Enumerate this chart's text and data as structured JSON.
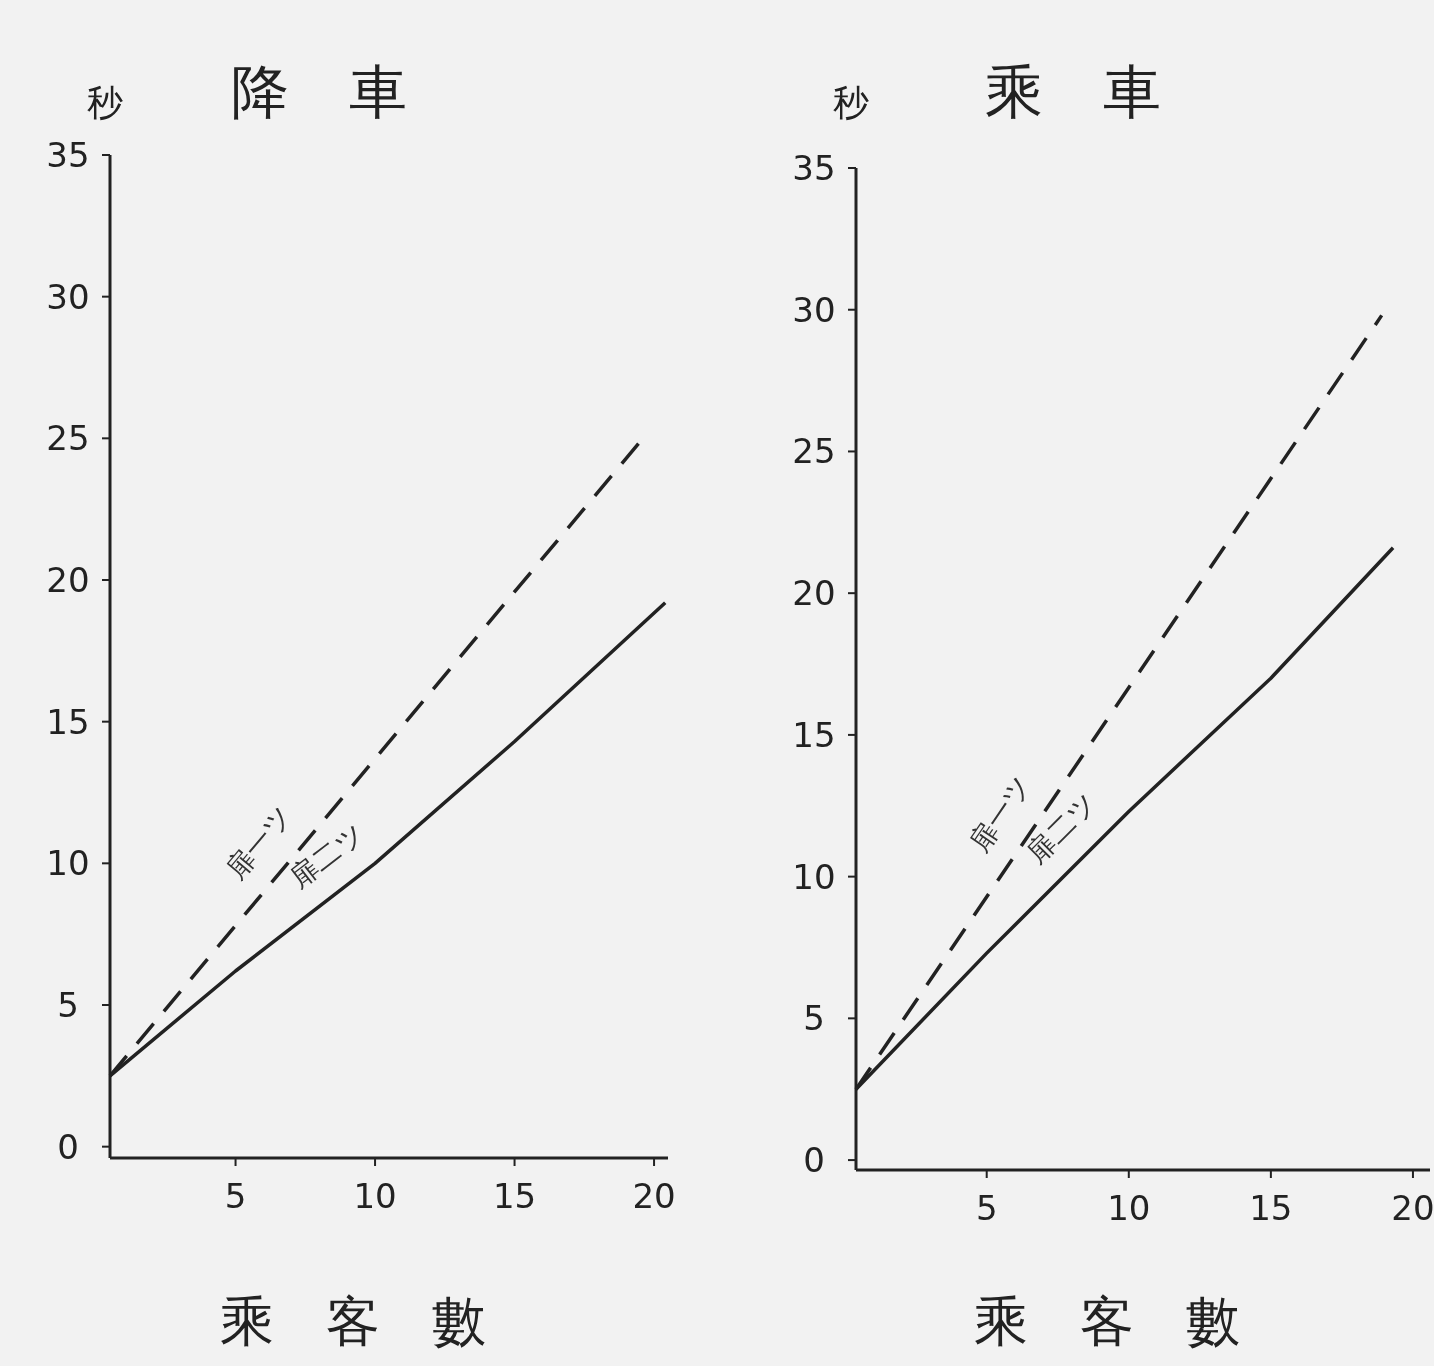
{
  "chart_data": [
    {
      "type": "line",
      "title": "降車",
      "xlabel": "乘客數",
      "ylabel": "秒",
      "xlim": [
        0.5,
        20.5
      ],
      "xticks": [
        5,
        10,
        15,
        20
      ],
      "ylim": [
        -0.4,
        35
      ],
      "yticks": [
        0,
        5,
        10,
        15,
        20,
        25,
        30,
        35
      ],
      "series": [
        {
          "name": "扉一ツ",
          "color": "#222222",
          "line_style": "dashed",
          "x": [
            0.5,
            19.6
          ],
          "values": [
            2.5,
            25
          ]
        },
        {
          "name": "扉二ツ",
          "color": "#222222",
          "line_style": "solid",
          "x": [
            0.5,
            5,
            10,
            15,
            20.4
          ],
          "values": [
            2.5,
            6.2,
            10,
            14.3,
            19.2
          ]
        }
      ]
    },
    {
      "type": "line",
      "title": "乘車",
      "xlabel": "乘客數",
      "ylabel": "秒",
      "xlim": [
        0.4,
        20.6
      ],
      "xticks": [
        5,
        10,
        15,
        20
      ],
      "ylim": [
        -0.35,
        35
      ],
      "yticks": [
        0,
        5,
        10,
        15,
        20,
        25,
        30,
        35
      ],
      "series": [
        {
          "name": "扉一ツ",
          "color": "#222222",
          "line_style": "dashed",
          "x": [
            0.4,
            18.9
          ],
          "values": [
            2.5,
            29.8
          ]
        },
        {
          "name": "扉二ツ",
          "color": "#222222",
          "line_style": "solid",
          "x": [
            0.4,
            5,
            10,
            15,
            19.3
          ],
          "values": [
            2.5,
            7.3,
            12.3,
            17,
            21.6
          ]
        }
      ]
    }
  ]
}
